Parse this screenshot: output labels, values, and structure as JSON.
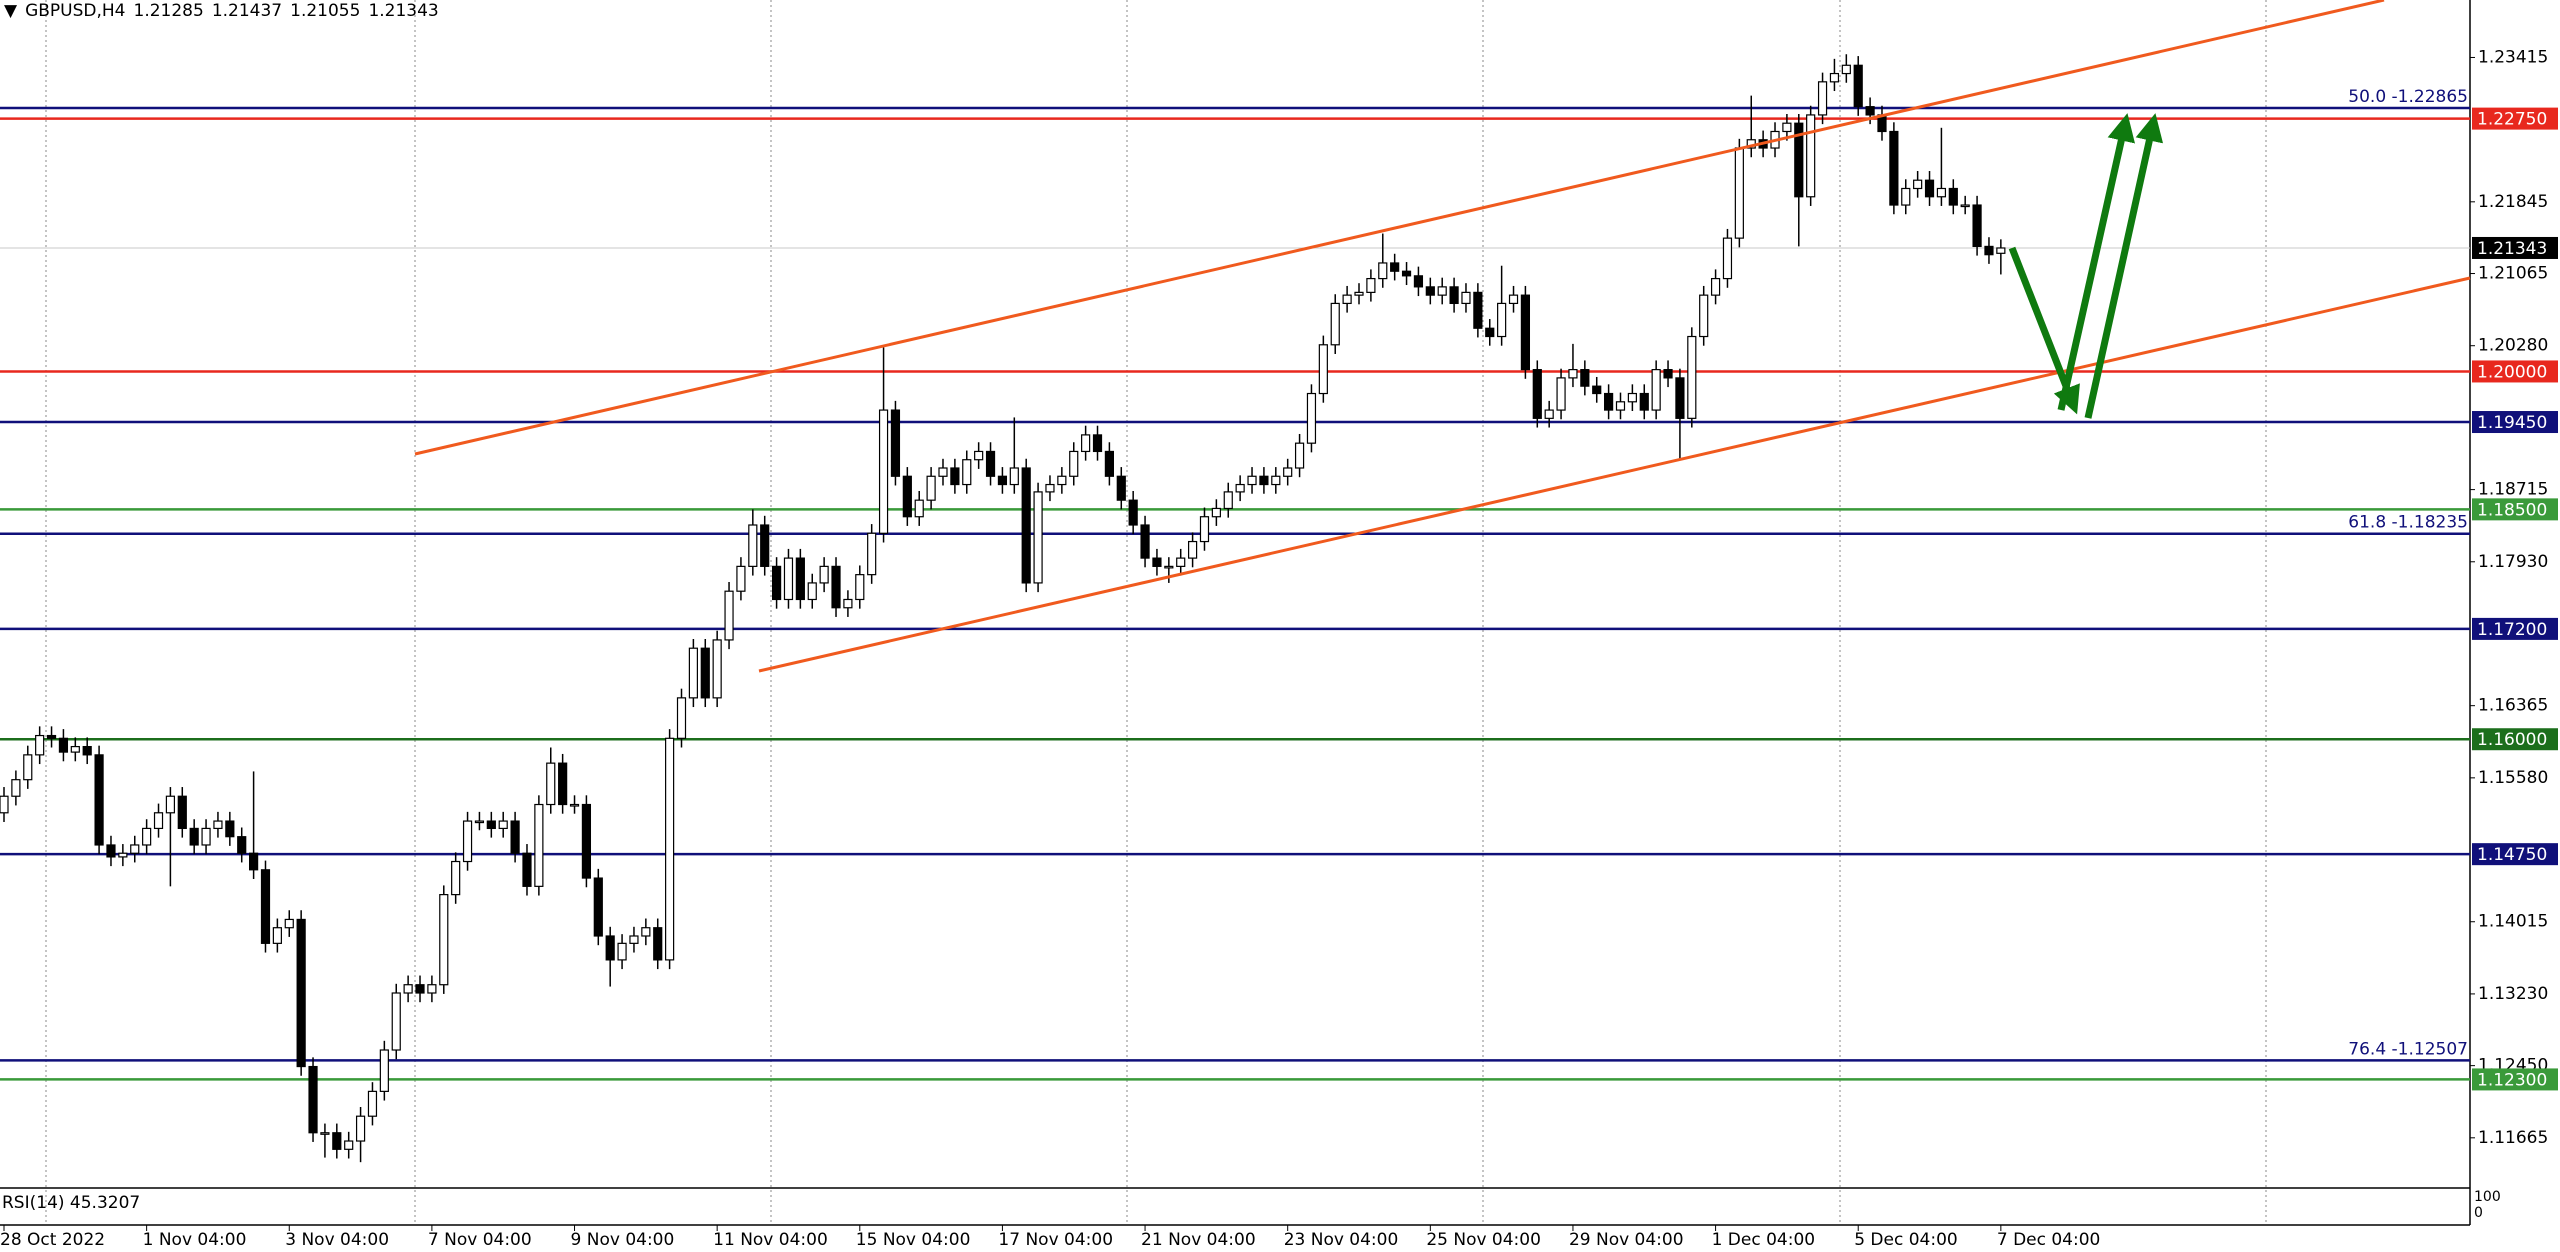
{
  "chart_data": {
    "type": "candlestick",
    "title": "GBPUSD,H4",
    "header_ohlc": [
      1.21285,
      1.21437,
      1.21055,
      1.21343
    ],
    "up_color": "#ffffff",
    "down_color": "#000000",
    "categories": [
      "28 Oct 2022",
      null,
      null,
      null,
      null,
      null,
      null,
      null,
      null,
      null,
      null,
      null,
      "1 Nov 04:00",
      null,
      null,
      null,
      null,
      null,
      null,
      null,
      null,
      null,
      null,
      null,
      "3 Nov 04:00",
      null,
      null,
      null,
      null,
      null,
      null,
      null,
      null,
      null,
      null,
      null,
      "7 Nov 04:00",
      null,
      null,
      null,
      null,
      null,
      null,
      null,
      null,
      null,
      null,
      null,
      "9 Nov 04:00",
      null,
      null,
      null,
      null,
      null,
      null,
      null,
      null,
      null,
      null,
      null,
      "11 Nov 04:00",
      null,
      null,
      null,
      null,
      null,
      null,
      null,
      null,
      null,
      null,
      null,
      "15 Nov 04:00",
      null,
      null,
      null,
      null,
      null,
      null,
      null,
      null,
      null,
      null,
      null,
      "17 Nov 04:00",
      null,
      null,
      null,
      null,
      null,
      null,
      null,
      null,
      null,
      null,
      null,
      "21 Nov 04:00",
      null,
      null,
      null,
      null,
      null,
      null,
      null,
      null,
      null,
      null,
      null,
      "23 Nov 04:00",
      null,
      null,
      null,
      null,
      null,
      null,
      null,
      null,
      null,
      null,
      null,
      "25 Nov 04:00",
      null,
      null,
      null,
      null,
      null,
      null,
      null,
      null,
      null,
      null,
      null,
      "29 Nov 04:00",
      null,
      null,
      null,
      null,
      null,
      null,
      null,
      null,
      null,
      null,
      null,
      "1 Dec 04:00",
      null,
      null,
      null,
      null,
      null,
      null,
      null,
      null,
      null,
      null,
      null,
      "5 Dec 04:00",
      null,
      null,
      null,
      null,
      null,
      null,
      null,
      null,
      null,
      null,
      null,
      "7 Dec 04:00"
    ],
    "open": [
      1.152,
      1.1538,
      1.1556,
      1.1583,
      1.1604,
      1.1601,
      1.1586,
      1.1592,
      1.1583,
      1.1485,
      1.1472,
      1.1476,
      1.1485,
      1.1503,
      1.152,
      1.1538,
      1.1503,
      1.1485,
      1.1503,
      1.1511,
      1.1494,
      1.1476,
      1.1458,
      1.1378,
      1.1395,
      1.1404,
      1.1244,
      1.1172,
      1.1172,
      1.1154,
      1.1163,
      1.119,
      1.1217,
      1.1262,
      1.1324,
      1.1333,
      1.1324,
      1.1333,
      1.1431,
      1.1467,
      1.1511,
      1.1511,
      1.1503,
      1.1511,
      1.1476,
      1.144,
      1.1529,
      1.1574,
      1.1529,
      1.1529,
      1.1449,
      1.1386,
      1.136,
      1.1378,
      1.1386,
      1.1395,
      1.136,
      1.1601,
      1.1645,
      1.1699,
      1.1645,
      1.1708,
      1.1761,
      1.1788,
      1.1833,
      1.1788,
      1.1752,
      1.1797,
      1.1752,
      1.177,
      1.1788,
      1.1743,
      1.1752,
      1.1779,
      1.1824,
      1.1958,
      1.1886,
      1.1842,
      1.186,
      1.1886,
      1.1895,
      1.1877,
      1.1904,
      1.1913,
      1.1886,
      1.1877,
      1.1895,
      1.177,
      1.1869,
      1.1877,
      1.1886,
      1.1913,
      1.1931,
      1.1913,
      1.1886,
      1.186,
      1.1833,
      1.1797,
      1.1788,
      1.1788,
      1.1797,
      1.1815,
      1.1842,
      1.1851,
      1.1869,
      1.1877,
      1.1886,
      1.1877,
      1.1886,
      1.1895,
      1.1922,
      1.1976,
      1.2029,
      1.2074,
      1.2083,
      1.2086,
      1.2101,
      1.2118,
      1.2109,
      1.2104,
      1.2092,
      1.2083,
      1.2092,
      1.2074,
      1.2086,
      1.2047,
      1.2038,
      1.2074,
      1.2083,
      1.2002,
      1.1949,
      1.1958,
      1.1993,
      1.2002,
      1.1984,
      1.1976,
      1.1958,
      1.1967,
      1.1976,
      1.1958,
      1.2002,
      1.1993,
      1.1949,
      1.2038,
      1.2083,
      1.2101,
      1.2145,
      1.2243,
      1.2252,
      1.2243,
      1.2261,
      1.227,
      1.219,
      1.2279,
      1.2315,
      1.2324,
      1.2333,
      1.2288,
      1.2279,
      1.2261,
      1.2181,
      1.2199,
      1.2208,
      1.219,
      1.2199,
      1.2181,
      1.2181,
      1.2136,
      1.21285
    ],
    "high": [
      1.1548,
      1.1566,
      1.1593,
      1.1614,
      1.1614,
      1.1611,
      1.1602,
      1.1602,
      1.1593,
      1.1495,
      1.1486,
      1.1495,
      1.1513,
      1.153,
      1.1548,
      1.1548,
      1.1513,
      1.1513,
      1.1521,
      1.1521,
      1.1504,
      1.1565,
      1.1468,
      1.1405,
      1.1414,
      1.1414,
      1.1254,
      1.1182,
      1.1182,
      1.1173,
      1.12,
      1.1227,
      1.1272,
      1.1334,
      1.1343,
      1.1343,
      1.1343,
      1.1441,
      1.1477,
      1.1521,
      1.1521,
      1.1521,
      1.1521,
      1.1521,
      1.1486,
      1.1539,
      1.1591,
      1.1584,
      1.1539,
      1.1539,
      1.1459,
      1.1396,
      1.1388,
      1.1396,
      1.1405,
      1.1405,
      1.1611,
      1.1655,
      1.1709,
      1.1709,
      1.1718,
      1.1771,
      1.1798,
      1.185,
      1.1843,
      1.1798,
      1.1807,
      1.1807,
      1.178,
      1.1798,
      1.1798,
      1.1762,
      1.1789,
      1.1834,
      1.2026,
      1.1968,
      1.1896,
      1.187,
      1.1896,
      1.1905,
      1.1905,
      1.1914,
      1.1923,
      1.1923,
      1.1896,
      1.195,
      1.1905,
      1.1879,
      1.1887,
      1.1896,
      1.1923,
      1.1941,
      1.1941,
      1.1923,
      1.1896,
      1.187,
      1.1843,
      1.1807,
      1.1798,
      1.1807,
      1.1825,
      1.1852,
      1.1861,
      1.1879,
      1.1887,
      1.1896,
      1.1896,
      1.1896,
      1.1905,
      1.1932,
      1.1986,
      1.2039,
      1.2084,
      1.2093,
      1.2096,
      1.2111,
      1.215,
      1.2128,
      1.2119,
      1.2114,
      1.2102,
      1.2102,
      1.2102,
      1.2096,
      1.2096,
      1.2057,
      1.2115,
      1.2093,
      1.2093,
      1.2012,
      1.1968,
      1.2003,
      1.203,
      1.2012,
      1.1994,
      1.1986,
      1.1977,
      1.1986,
      1.1986,
      1.2012,
      1.2012,
      1.2003,
      1.2048,
      1.2093,
      1.2111,
      1.2155,
      1.2253,
      1.23,
      1.2262,
      1.2271,
      1.228,
      1.228,
      1.2289,
      1.2325,
      1.234,
      1.2345,
      1.2343,
      1.2298,
      1.2289,
      1.2271,
      1.2209,
      1.2218,
      1.2218,
      1.2265,
      1.2209,
      1.2191,
      1.2191,
      1.2146,
      1.21437
    ],
    "low": [
      1.151,
      1.1528,
      1.1546,
      1.1573,
      1.1591,
      1.1576,
      1.1576,
      1.1573,
      1.1475,
      1.1462,
      1.1462,
      1.1466,
      1.1475,
      1.1493,
      1.144,
      1.1493,
      1.1475,
      1.1475,
      1.1493,
      1.1484,
      1.1466,
      1.1448,
      1.1368,
      1.1368,
      1.1385,
      1.1234,
      1.1162,
      1.1145,
      1.1144,
      1.1144,
      1.114,
      1.118,
      1.1207,
      1.1252,
      1.1314,
      1.1314,
      1.1314,
      1.1323,
      1.1421,
      1.1457,
      1.1501,
      1.1493,
      1.1493,
      1.1466,
      1.143,
      1.143,
      1.1519,
      1.1519,
      1.1519,
      1.1439,
      1.1376,
      1.1331,
      1.135,
      1.1368,
      1.1376,
      1.135,
      1.135,
      1.1591,
      1.1635,
      1.1635,
      1.1635,
      1.1698,
      1.1751,
      1.1778,
      1.1778,
      1.1742,
      1.1742,
      1.1742,
      1.1742,
      1.176,
      1.1733,
      1.1733,
      1.1742,
      1.1769,
      1.1814,
      1.1876,
      1.1832,
      1.1832,
      1.185,
      1.1876,
      1.1867,
      1.1867,
      1.1894,
      1.1876,
      1.1867,
      1.1867,
      1.176,
      1.176,
      1.1859,
      1.1867,
      1.1876,
      1.1903,
      1.1903,
      1.1876,
      1.185,
      1.1823,
      1.1787,
      1.1778,
      1.177,
      1.1778,
      1.1787,
      1.1805,
      1.1832,
      1.1841,
      1.1859,
      1.1867,
      1.1867,
      1.1867,
      1.1876,
      1.1885,
      1.1912,
      1.1966,
      1.2019,
      1.2064,
      1.2073,
      1.2076,
      1.2091,
      1.2099,
      1.2094,
      1.2082,
      1.2073,
      1.2073,
      1.2064,
      1.2064,
      1.2037,
      1.2028,
      1.2028,
      1.2064,
      1.1992,
      1.1939,
      1.1939,
      1.1948,
      1.1983,
      1.1974,
      1.1966,
      1.1948,
      1.1948,
      1.1957,
      1.1948,
      1.1948,
      1.1983,
      1.1904,
      1.1939,
      1.2028,
      1.2073,
      1.2091,
      1.2135,
      1.2233,
      1.2233,
      1.2233,
      1.2251,
      1.2136,
      1.218,
      1.2269,
      1.2305,
      1.2314,
      1.2278,
      1.2269,
      1.2251,
      1.2171,
      1.2171,
      1.2189,
      1.218,
      1.218,
      1.2171,
      1.2171,
      1.2126,
      1.2117,
      1.21055
    ],
    "close": [
      1.1538,
      1.1556,
      1.1583,
      1.1604,
      1.1601,
      1.1586,
      1.1592,
      1.1583,
      1.1485,
      1.1472,
      1.1476,
      1.1485,
      1.1503,
      1.152,
      1.1538,
      1.1503,
      1.1485,
      1.1503,
      1.1511,
      1.1494,
      1.1476,
      1.1458,
      1.1378,
      1.1395,
      1.1404,
      1.1244,
      1.1172,
      1.1172,
      1.1154,
      1.1163,
      1.119,
      1.1217,
      1.1262,
      1.1324,
      1.1333,
      1.1324,
      1.1333,
      1.1431,
      1.1467,
      1.1511,
      1.1511,
      1.1503,
      1.1511,
      1.1476,
      1.144,
      1.1529,
      1.1574,
      1.1529,
      1.1529,
      1.1449,
      1.1386,
      1.136,
      1.1378,
      1.1386,
      1.1395,
      1.136,
      1.1601,
      1.1645,
      1.1699,
      1.1645,
      1.1708,
      1.1761,
      1.1788,
      1.1833,
      1.1788,
      1.1752,
      1.1797,
      1.1752,
      1.177,
      1.1788,
      1.1743,
      1.1752,
      1.1779,
      1.1824,
      1.1958,
      1.1886,
      1.1842,
      1.186,
      1.1886,
      1.1895,
      1.1877,
      1.1904,
      1.1913,
      1.1886,
      1.1877,
      1.1895,
      1.177,
      1.1869,
      1.1877,
      1.1886,
      1.1913,
      1.1931,
      1.1913,
      1.1886,
      1.186,
      1.1833,
      1.1797,
      1.1788,
      1.1788,
      1.1797,
      1.1815,
      1.1842,
      1.1851,
      1.1869,
      1.1877,
      1.1886,
      1.1877,
      1.1886,
      1.1895,
      1.1922,
      1.1976,
      1.2029,
      1.2074,
      1.2083,
      1.2086,
      1.2101,
      1.2118,
      1.2109,
      1.2104,
      1.2092,
      1.2083,
      1.2092,
      1.2074,
      1.2086,
      1.2047,
      1.2038,
      1.2074,
      1.2083,
      1.2002,
      1.1949,
      1.1958,
      1.1993,
      1.2002,
      1.1984,
      1.1976,
      1.1958,
      1.1967,
      1.1976,
      1.1958,
      1.2002,
      1.1993,
      1.1949,
      1.2038,
      1.2083,
      1.2101,
      1.2145,
      1.2243,
      1.2252,
      1.2243,
      1.2261,
      1.227,
      1.219,
      1.2279,
      1.2315,
      1.2324,
      1.2333,
      1.2288,
      1.2279,
      1.2261,
      1.2181,
      1.2199,
      1.2208,
      1.219,
      1.2199,
      1.2181,
      1.2181,
      1.2136,
      1.2127,
      1.21343
    ],
    "ylim": [
      1.1113,
      1.2404
    ],
    "yticks": [
      1.23415,
      1.21845,
      1.21065,
      {
        "value": 1.2028,
        "label": "1.20280"
      },
      1.18715,
      {
        "value": 1.1793,
        "label": "1.17930"
      },
      1.16365,
      {
        "value": 1.1558,
        "label": "1.15580"
      },
      1.14015,
      {
        "value": 1.1323,
        "label": "1.13230"
      },
      {
        "value": 1.1245,
        "label": "1.12450"
      },
      1.11665
    ],
    "levels": [
      {
        "value": 1.2275,
        "label": "1.22750",
        "color": "#e8281e"
      },
      {
        "value": 1.2,
        "label": "1.20000",
        "color": "#e8281e"
      },
      {
        "value": 1.1945,
        "label": "1.19450",
        "color": "#10107a"
      },
      {
        "value": 1.185,
        "label": "1.18500",
        "color": "#3a9a3a"
      },
      {
        "value": 1.172,
        "label": "1.17200",
        "color": "#10107a"
      },
      {
        "value": 1.16,
        "label": "1.16000",
        "color": "#1c6e1c"
      },
      {
        "value": 1.1475,
        "label": "1.14750",
        "color": "#10107a"
      },
      {
        "value": 1.123,
        "label": "1.12300",
        "color": "#3a9a3a"
      }
    ],
    "fib_levels": [
      {
        "value": 1.22865,
        "label": "50.0 -1.22865",
        "color": "#10107a"
      },
      {
        "value": 1.18235,
        "label": "61.8 -1.18235",
        "color": "#10107a"
      },
      {
        "value": 1.12507,
        "label": "76.4 -1.12507",
        "color": "#10107a"
      }
    ],
    "last_price": 1.21343,
    "indicator": {
      "label": "RSI(14) 45.3207",
      "scale": [
        100,
        0
      ]
    }
  }
}
